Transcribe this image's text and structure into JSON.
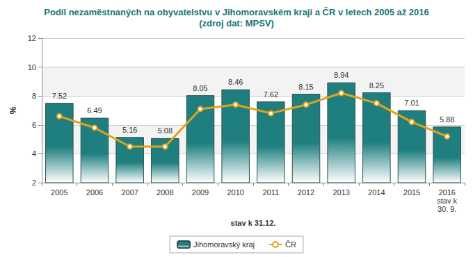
{
  "chart_data": {
    "type": "bar",
    "title": "Podíl nezaměstnaných na obyvatelstvu v Jihomoravském kraji a ČR v letech 2005 až 2016",
    "subtitle": "(zdroj dat: MPSV)",
    "xlabel": "stav k 31.12.",
    "ylabel": "%",
    "categories": [
      "2005",
      "2006",
      "2007",
      "2008",
      "2009",
      "2010",
      "2011",
      "2012",
      "2013",
      "2014",
      "2015",
      "2016\nstav k\n30. 9."
    ],
    "series": [
      {
        "name": "Jihomoravský kraj",
        "type": "bar",
        "color": "#1f7f7f",
        "data_labels": true,
        "values": [
          7.52,
          6.49,
          5.16,
          5.08,
          8.05,
          8.46,
          7.62,
          8.15,
          8.94,
          8.25,
          7.01,
          5.88
        ]
      },
      {
        "name": "ČR",
        "type": "line",
        "color": "#e3a21a",
        "marker": "circle",
        "values": [
          6.6,
          5.8,
          4.5,
          4.5,
          7.1,
          7.4,
          6.8,
          7.4,
          8.2,
          7.5,
          6.2,
          5.2
        ]
      }
    ],
    "ylim": [
      2,
      12
    ],
    "yticks": [
      2,
      4,
      6,
      8,
      10,
      12
    ],
    "grid": true,
    "legend": "bottom"
  }
}
